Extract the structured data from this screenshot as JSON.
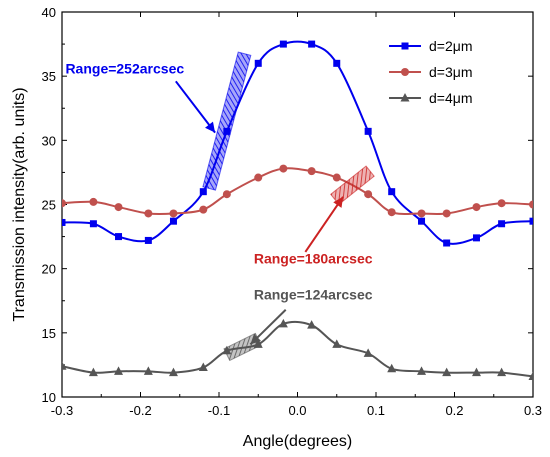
{
  "chart_data": {
    "type": "line",
    "xlabel": "Angle(degrees)",
    "ylabel": "Transmission intensity(arb. units)",
    "xlim": [
      -0.3,
      0.3
    ],
    "ylim": [
      10,
      40
    ],
    "xticks": [
      "-0.3",
      "-0.2",
      "-0.1",
      "0.0",
      "0.1",
      "0.2",
      "0.3"
    ],
    "yticks": [
      "10",
      "15",
      "20",
      "25",
      "30",
      "35",
      "40"
    ],
    "grid": false,
    "legend_position": "top-right",
    "series": [
      {
        "name": "d=2μm",
        "color": "#0000ee",
        "marker": "square",
        "x": [
          -0.3,
          -0.26,
          -0.228,
          -0.19,
          -0.158,
          -0.12,
          -0.09,
          -0.05,
          -0.018,
          0.018,
          0.05,
          0.09,
          0.12,
          0.158,
          0.19,
          0.228,
          0.26,
          0.3
        ],
        "y": [
          23.6,
          23.5,
          22.5,
          22.2,
          23.7,
          26.0,
          30.7,
          36.0,
          37.5,
          37.5,
          36.0,
          30.7,
          26.0,
          23.7,
          22.0,
          22.4,
          23.5,
          23.7
        ]
      },
      {
        "name": "d=3μm",
        "color": "#c0504d",
        "marker": "circle",
        "x": [
          -0.3,
          -0.26,
          -0.228,
          -0.19,
          -0.158,
          -0.12,
          -0.09,
          -0.05,
          -0.018,
          0.018,
          0.05,
          0.09,
          0.12,
          0.158,
          0.19,
          0.228,
          0.26,
          0.3
        ],
        "y": [
          25.1,
          25.2,
          24.8,
          24.3,
          24.3,
          24.6,
          25.8,
          27.1,
          27.8,
          27.6,
          27.1,
          25.8,
          24.4,
          24.3,
          24.3,
          24.8,
          25.1,
          25.0
        ]
      },
      {
        "name": "d=4μm",
        "color": "#555555",
        "marker": "triangle",
        "x": [
          -0.3,
          -0.26,
          -0.228,
          -0.19,
          -0.158,
          -0.12,
          -0.09,
          -0.05,
          -0.018,
          0.018,
          0.05,
          0.09,
          0.12,
          0.158,
          0.19,
          0.228,
          0.26,
          0.3
        ],
        "y": [
          12.4,
          11.9,
          12.0,
          12.0,
          11.9,
          12.3,
          13.6,
          14.1,
          15.7,
          15.6,
          14.1,
          13.4,
          12.2,
          12.0,
          11.9,
          11.9,
          11.9,
          11.6
        ]
      }
    ],
    "annotations": [
      {
        "text": "Range=252arcsec",
        "color": "#0000ee",
        "text_x": -0.22,
        "text_y": 35.2,
        "arrow_from": [
          -0.155,
          34.6
        ],
        "arrow_to": [
          -0.105,
          30.6
        ],
        "band_center": [
          -0.09,
          31.5
        ],
        "band_dx": 0.045,
        "band_dy": 10.5
      },
      {
        "text": "Range=180arcsec",
        "color": "#cc2222",
        "text_x": 0.02,
        "text_y": 20.4,
        "arrow_from": [
          0.01,
          21.3
        ],
        "arrow_to": [
          0.058,
          25.6
        ],
        "band_center": [
          0.07,
          26.5
        ],
        "band_dx": 0.045,
        "band_dy": 2.2
      },
      {
        "text": "Range=124arcsec",
        "color": "#555555",
        "text_x": 0.02,
        "text_y": 17.6,
        "arrow_from": [
          -0.015,
          16.8
        ],
        "arrow_to": [
          -0.06,
          14.1
        ],
        "band_center": [
          -0.07,
          13.9
        ],
        "band_dx": 0.04,
        "band_dy": 1.2
      }
    ]
  }
}
